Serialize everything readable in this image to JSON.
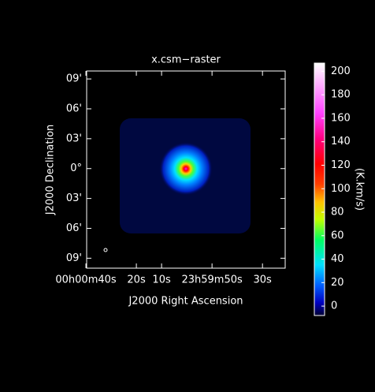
{
  "chart_data": {
    "type": "image",
    "title": "x.csm−raster",
    "xlabel": "J2000 Right Ascension",
    "ylabel": "J2000 Declination",
    "xlim": [
      39.7,
      -39
    ],
    "ylim": [
      -10,
      9.8
    ],
    "xticks": [
      {
        "value": 40,
        "label": "00h00m40s"
      },
      {
        "value": 20,
        "label": "20s"
      },
      {
        "value": 10,
        "label": "10s"
      },
      {
        "value": -10,
        "label": "23h59m50s"
      },
      {
        "value": -30,
        "label": "30s"
      }
    ],
    "yticks": [
      {
        "value": 9,
        "label": "09'"
      },
      {
        "value": 6,
        "label": "06'"
      },
      {
        "value": 3,
        "label": "03'"
      },
      {
        "value": 0,
        "label": "0°"
      },
      {
        "value": -3,
        "label": "03'"
      },
      {
        "value": -6,
        "label": "06'"
      },
      {
        "value": -9,
        "label": "09'"
      }
    ],
    "colorbar": {
      "label": "(K.km/s)",
      "clim": [
        -8,
        207
      ],
      "ticks": [
        0,
        20,
        40,
        60,
        80,
        100,
        120,
        140,
        160,
        180,
        200
      ]
    }
  }
}
